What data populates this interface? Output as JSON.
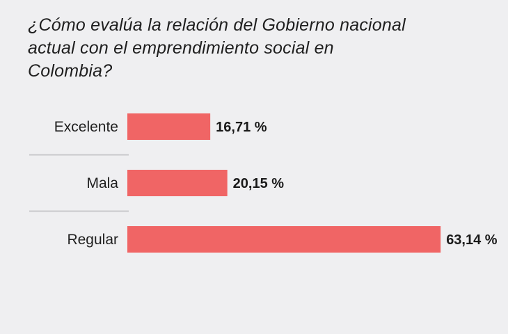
{
  "title": "¿Cómo evalúa la relación del Gobierno nacional actual con el emprendimiento social en Colombia?",
  "colors": {
    "background": "#efeff1",
    "bar": "#f06565",
    "separator": "#c9c9cc",
    "text": "#1f1f1f"
  },
  "chart_data": {
    "type": "bar",
    "orientation": "horizontal",
    "title": "¿Cómo evalúa la relación del Gobierno nacional actual con el emprendimiento social en Colombia?",
    "categories": [
      "Excelente",
      "Mala",
      "Regular"
    ],
    "values": [
      16.71,
      20.15,
      63.14
    ],
    "value_labels": [
      "16,71 %",
      "20,15 %",
      "63,14 %"
    ],
    "unit": "%",
    "xlim": [
      0,
      100
    ],
    "grid": false,
    "legend": "none"
  }
}
